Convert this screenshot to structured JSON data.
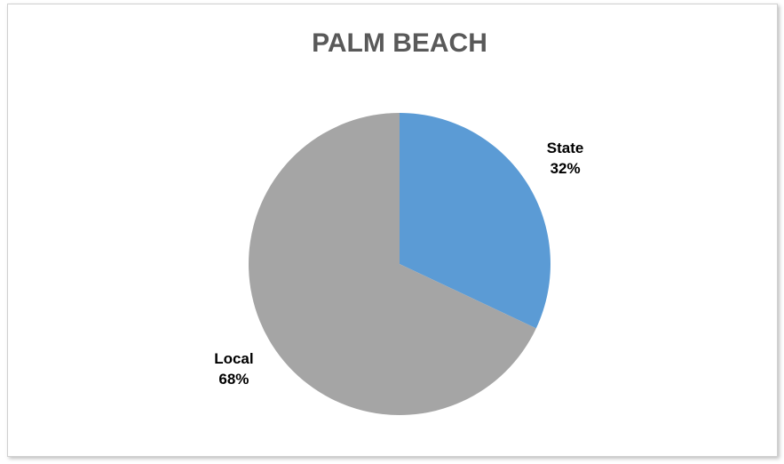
{
  "chart_data": {
    "type": "pie",
    "title": "PALM BEACH",
    "categories": [
      "State",
      "Local"
    ],
    "values": [
      32,
      68
    ],
    "value_labels": [
      "32%",
      "68%"
    ],
    "colors": [
      "#5b9bd5",
      "#a5a5a5"
    ]
  }
}
